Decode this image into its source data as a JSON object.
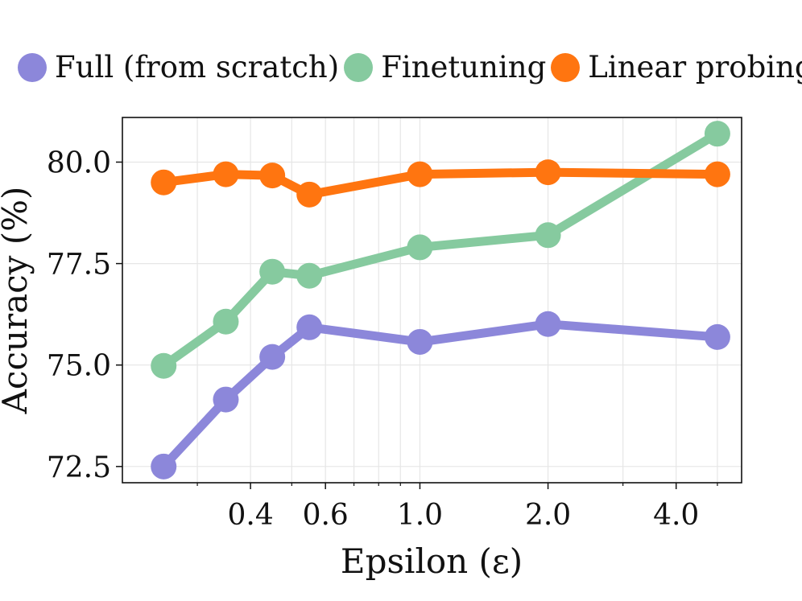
{
  "chart_data": {
    "type": "line",
    "xscale": "log",
    "xlabel": "Epsilon (ε)",
    "ylabel": "Accuracy (%)",
    "xlim": [
      0.2,
      5.7
    ],
    "ylim": [
      72.1,
      81.1
    ],
    "x_ticks": [
      {
        "value": 0.4,
        "label": "0.4"
      },
      {
        "value": 0.6,
        "label": "0.6"
      },
      {
        "value": 1.0,
        "label": "1.0"
      },
      {
        "value": 2.0,
        "label": "2.0"
      },
      {
        "value": 4.0,
        "label": "4.0"
      }
    ],
    "x_minor_ticks": [
      0.3,
      0.5,
      0.7,
      0.8,
      0.9,
      3.0,
      5.0
    ],
    "y_ticks": [
      {
        "value": 72.5,
        "label": "72.5"
      },
      {
        "value": 75.0,
        "label": "75.0"
      },
      {
        "value": 77.5,
        "label": "77.5"
      },
      {
        "value": 80.0,
        "label": "80.0"
      }
    ],
    "grid": true,
    "legend_position": "top",
    "series": [
      {
        "name": "Full (from scratch)",
        "color": "#8c87da",
        "x": [
          0.25,
          0.35,
          0.45,
          0.55,
          1.0,
          2.0,
          5.0
        ],
        "y": [
          72.5,
          74.15,
          75.2,
          75.93,
          75.57,
          76.01,
          75.69
        ]
      },
      {
        "name": "Finetuning",
        "color": "#86ca9f",
        "x": [
          0.25,
          0.35,
          0.45,
          0.55,
          1.0,
          2.0,
          5.0
        ],
        "y": [
          74.98,
          76.07,
          77.3,
          77.2,
          77.9,
          78.2,
          80.7
        ]
      },
      {
        "name": "Linear probing",
        "color": "#ff7510",
        "x": [
          0.25,
          0.35,
          0.45,
          0.55,
          1.0,
          2.0,
          5.0
        ],
        "y": [
          79.5,
          79.7,
          79.67,
          79.2,
          79.7,
          79.75,
          79.7
        ]
      }
    ]
  }
}
